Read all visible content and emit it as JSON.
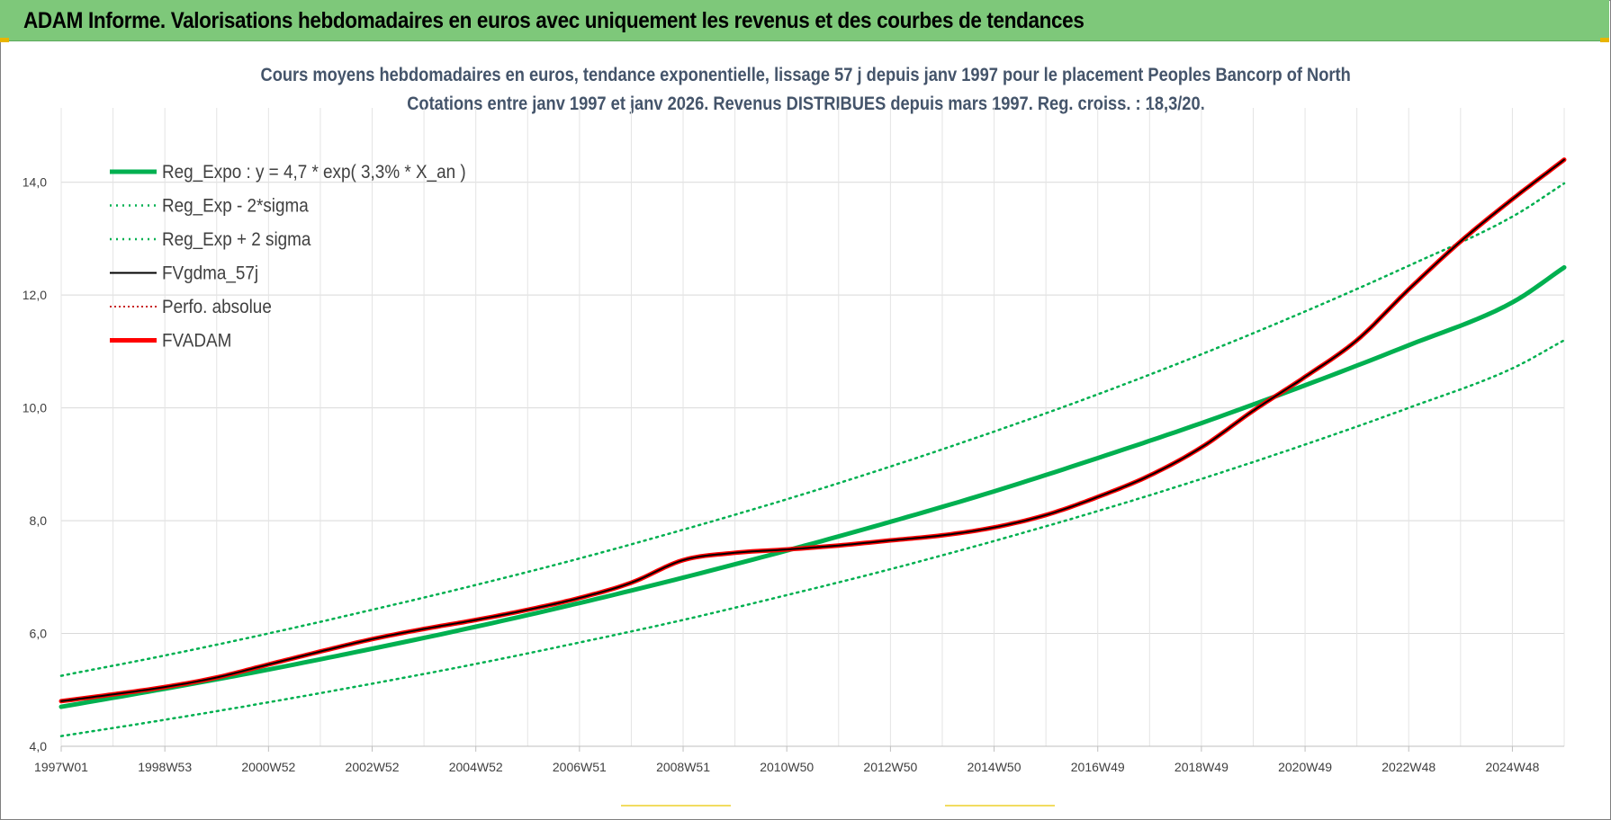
{
  "header": {
    "title": "ADAM Informe. Valorisations hebdomadaires en euros avec uniquement les revenus et des courbes de tendances"
  },
  "colors": {
    "header_bg": "#7ec87a",
    "trend": "#00b050",
    "fvadam": "#ff0000",
    "fvgdma": "#000000",
    "perfo": "#c00000",
    "title_text": "#44546a"
  },
  "chart_data": {
    "type": "line",
    "title": "Cours moyens hebdomadaires en euros, tendance exponentielle, lissage 57 j depuis janv 1997 pour le placement Peoples Bancorp of North",
    "subtitle": "Cotations entre janv 1997 et janv 2026. Revenus DISTRIBUES depuis mars 1997. Reg. croiss. : 18,3/20.",
    "xlabel": "",
    "ylabel": "",
    "ylim": [
      4.0,
      15.0
    ],
    "x_range": [
      1997.0,
      2026.0
    ],
    "grid": true,
    "legend_position": "top-left",
    "y_ticks": [
      "4,0",
      "6,0",
      "8,0",
      "10,0",
      "12,0",
      "14,0"
    ],
    "x_ticks": [
      "1997W01",
      "1998W53",
      "2000W52",
      "2002W52",
      "2004W52",
      "2006W51",
      "2008W51",
      "2010W50",
      "2012W50",
      "2014W50",
      "2016W49",
      "2018W49",
      "2020W49",
      "2022W48",
      "2024W48"
    ],
    "series": [
      {
        "name": "Reg_Expo : y = 4,7 * exp( 3,3% *  X_an )",
        "style": "solid-thick",
        "color": "#00b050",
        "x": [
          1997,
          1999,
          2001,
          2003,
          2005,
          2007,
          2009,
          2011,
          2013,
          2015,
          2017,
          2019,
          2021,
          2023,
          2025,
          2026
        ],
        "y": [
          4.7,
          5.02,
          5.36,
          5.73,
          6.12,
          6.54,
          6.99,
          7.47,
          7.98,
          8.52,
          9.11,
          9.73,
          10.4,
          11.11,
          11.87,
          12.49
        ]
      },
      {
        "name": "Reg_Exp - 2*sigma",
        "style": "dotted",
        "color": "#00b050",
        "x": [
          1997,
          1999,
          2001,
          2003,
          2005,
          2007,
          2009,
          2011,
          2013,
          2015,
          2017,
          2019,
          2021,
          2023,
          2025,
          2026
        ],
        "y": [
          4.18,
          4.47,
          4.78,
          5.11,
          5.46,
          5.84,
          6.24,
          6.68,
          7.14,
          7.64,
          8.17,
          8.74,
          9.35,
          10.0,
          10.7,
          11.2
        ]
      },
      {
        "name": "Reg_Exp + 2 sigma",
        "style": "dotted",
        "color": "#00b050",
        "x": [
          1997,
          1999,
          2001,
          2003,
          2005,
          2007,
          2009,
          2011,
          2013,
          2015,
          2017,
          2019,
          2021,
          2023,
          2025,
          2026
        ],
        "y": [
          5.25,
          5.61,
          6.0,
          6.42,
          6.86,
          7.33,
          7.84,
          8.38,
          8.96,
          9.58,
          10.24,
          10.95,
          11.71,
          12.52,
          13.39,
          13.98
        ]
      },
      {
        "name": "FVgdma_57j",
        "style": "solid-thin",
        "color": "#000000",
        "x": [
          1997,
          1998,
          1999,
          2000,
          2001,
          2002,
          2003,
          2004,
          2005,
          2006,
          2007,
          2008,
          2009,
          2010,
          2011,
          2012,
          2013,
          2014,
          2015,
          2016,
          2017,
          2018,
          2019,
          2020,
          2021,
          2022,
          2023,
          2024,
          2025,
          2026
        ],
        "y": [
          4.8,
          4.92,
          5.05,
          5.22,
          5.45,
          5.68,
          5.9,
          6.08,
          6.24,
          6.42,
          6.63,
          6.9,
          7.3,
          7.43,
          7.49,
          7.56,
          7.65,
          7.74,
          7.88,
          8.1,
          8.42,
          8.8,
          9.3,
          9.95,
          10.55,
          11.2,
          12.1,
          12.95,
          13.7,
          14.4
        ]
      },
      {
        "name": "Perfo. absolue",
        "style": "dotted",
        "color": "#c00000",
        "x": [
          1997,
          1998,
          1999,
          2000,
          2001,
          2002,
          2003,
          2004,
          2005,
          2006,
          2007,
          2008,
          2009,
          2010,
          2011,
          2012,
          2013,
          2014,
          2015,
          2016,
          2017,
          2018,
          2019,
          2020,
          2021,
          2022,
          2023,
          2024,
          2025,
          2026
        ],
        "y": [
          4.8,
          4.92,
          5.05,
          5.22,
          5.45,
          5.68,
          5.9,
          6.08,
          6.24,
          6.42,
          6.63,
          6.9,
          7.3,
          7.43,
          7.49,
          7.56,
          7.65,
          7.74,
          7.88,
          8.1,
          8.42,
          8.8,
          9.3,
          9.95,
          10.55,
          11.2,
          12.1,
          12.95,
          13.7,
          14.4
        ]
      },
      {
        "name": "FVADAM",
        "style": "solid-thick",
        "color": "#ff0000",
        "x": [
          1997,
          1998,
          1999,
          2000,
          2001,
          2002,
          2003,
          2004,
          2005,
          2006,
          2007,
          2008,
          2009,
          2010,
          2011,
          2012,
          2013,
          2014,
          2015,
          2016,
          2017,
          2018,
          2019,
          2020,
          2021,
          2022,
          2023,
          2024,
          2025,
          2026
        ],
        "y": [
          4.8,
          4.92,
          5.05,
          5.22,
          5.45,
          5.68,
          5.9,
          6.08,
          6.24,
          6.42,
          6.63,
          6.9,
          7.3,
          7.43,
          7.49,
          7.56,
          7.65,
          7.74,
          7.88,
          8.1,
          8.42,
          8.8,
          9.3,
          9.95,
          10.55,
          11.2,
          12.1,
          12.95,
          13.7,
          14.4
        ]
      }
    ]
  }
}
